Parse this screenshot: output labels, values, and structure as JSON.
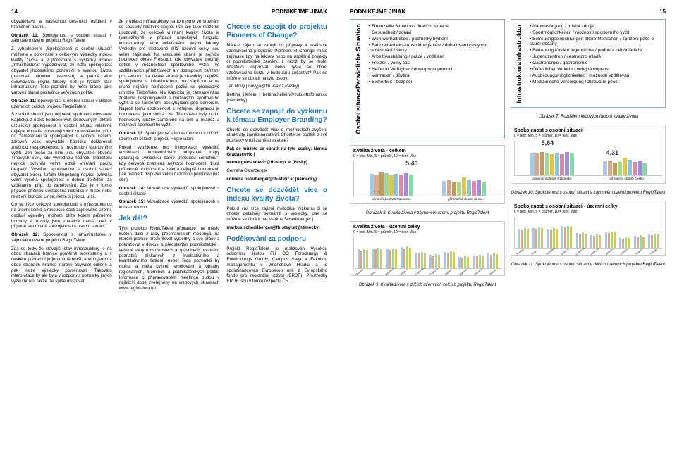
{
  "header": {
    "left_num": "14",
    "title": "PODNIKEJME JINAK",
    "right_num": "15"
  },
  "left": {
    "col1": {
      "p1": "obyvatelstva a následnou destrukcí osídlení v hraničním pásmu.",
      "h1": "Obrázek 10:",
      "p2": "Spokojenost s osobní situací v zájmovém území projektu RegioTalent",
      "p3": "Z vyhodnocení „Spokojenosti s osobní situací\" můžeme v porovnání s celkovými výsledky indexu kvality života a v porovnání s výsledky indexu „Infrastruktura\" vypozorovat, že nižší spokojenost obyvatel jihočeského pohraničí s kvalitou života (nejsme-li národem pesimistů) je patrně více ovlivňována jinými faktory, než je fyzický stav infrastruktury. Toto poznání by mělo bráno jako varovný signál pro tvůrce veřejných politik.",
      "h2": "Obrázek 11:",
      "p4": "Spokojenost s osobní situací v dílčích územních celcích projektu RegioTalent",
      "p5": "S osobní situací jsou nejméně spokojeni obyvatelé Kaplicka, z nízko hodnocených sledovaných faktorů určujících spokojenost s osobní situací relativně nejlépe dopadla doba dojíždění za vzděláním, příp. do zaměstnání a spokojenost s volným časem, zároveň však obyvatelé Kaplicka deklarovali značnou nespokojenost s možnostmi sportovního vyžití. Jen těsně za nimi jsou obyvatelé obvodu Trhových Svin, kde výslednou hodnotu indikátoru nejvíce ovlivnilo velmi nízké vnímání pocitu bezpečí. Vysokou spokojenost s osobní situací obyvatel okresu Urfahr-Umgebung nejvíce ovlivnila velmi vysoká spokojenost s dobou dojíždění za vzděláním, příp. do zaměstnání. Zda je v tomto případě příčinou dostatečná nabídka v místě nebo relativní blízkost Lince, nelze s jistotou určit.",
      "p6": "Co se týče celkové spokojenosti s infrastrukturou na úrovni české a rakouské části zájmového území, oscilují výsledky mohem blíže kolem průměrné hodnoty a rozdíly jsou znatelně menší, než v případě sledované spokojenosti s osobní situací.",
      "h3": "Obrázek 12:",
      "p7": "Spokojenost s infrastrukturou v zájmovém území projektu RegioTalent",
      "p8": "Zdá se tedy, že stávající stav infrastruktury je na obou stranách hranice poměrně srovnatelný a v českém pohraničí je jen mírně horší, anebo jsou na obou stranách hranice nároky obyvatel odlišné a pak nelze výsledky porovnávat. Takováto interpretace by ale byla v rozporu s poznatky jiných výzkumníků, takže lze spíše usuzovat,"
    },
    "col2": {
      "p1": "že v oblasti infrastruktury na tom jsme ve srovnání se sousedy relativně stejně. Pak ale také můžeme usuzovat, že celkové vnímání kvality života je (samozřejmě v případě uspokojivě fungující infrastruktury) více ovlivňováno jinými faktory. Výsledky pro sledované dílčí územní celky jsou velmi zajímavé. Na rakouské straně je nejníže hodnocen okres Freistadt, kde obyvatelé pociťují deficit v možnostech sportovního vyžití, ve vzdělávacích příležitostech a v dostupnosti zařízení pro seniory. Na české straně je drasticky nejnižší spokojenost s infrastrukturou na Kaplicku a na druhé nejhůře hodnocené pozici se překvapivě umístilo Třeboňsko. Na Kaplicku je zaznamenána znatelná nespokojenost s možnostmi sportovního vyžití a se zařízeními poskytujícími péči seniorům. Naproti tomu spokojenost s veřejnou dopravou je hodnocena jako dobrá. Na Třeboňsku byly nízko hodnoceny služby zaměřené na děti a mládež a možnosti sportovního vyžití.",
      "h1": "Obrázek 13:",
      "p2": "Spokojenost s infrastrukturou v dílčích územních celcích projektu RegioTalent",
      "p3": "Pokud využijeme pro interpretaci výsledků vizualizaci prostřednictvím obrysové mapy uplatňující symboliku barev „metodou semaforu\", kdy červená znamená nejhorší hodnocení, žlutá průměrné hodnocení a zelená nejlepší hodnocení, pak máme k dispozici velmi názornou pomůcku (viz obr.)",
      "h2": "Obrázek 14:",
      "p4": "Vizualizace výsledků spokojenosti s osobní situací",
      "h3": "Obrázek 15:",
      "p5": "Vizualizace výsledků spokojenosti s infrastrukturou",
      "st1": "Jak dál?",
      "p6": "Tým projektu RegioTalent připravuje na měsíc květen další z řady přeshraničních meetingů, na kterém plánuje prezentovat výsledky a své práce a pokračovat v diskusi s představiteli podnikatelské i veřejné sféry o možnostech a způsobech uplatnění poznatků získaných z kvalitativního a kvantitativního šetření, neboť řada poznatků by mohla a měla ovlivnit směřování a obsahy regionálních, firemních a podnikatelských politik. Informace o připravovaném meetingu budou v nejbližší době zveřejněny na webových stránkách www.regiotalent.eu."
    },
    "col3": {
      "st1": "Chcete se zapojit do projektu Pioneers of Change?",
      "p1": "Máte-li zájem se zapojit do přípravy a realizace vzdělávacího programu Pioneers of Change, máte zajímavé tipy na lektory nebo na úspěšné projekty či podnikatelské záměry, z nichž by se mohli účastníci inspirovat, nebo byste se chtěli vzdělávacího kurzu v budoucnu zúčastnit? Pak se můžete se obrátit na tyto osoby:",
      "p2": "Jan Nový | novyja@fm.vse.cz (česky)",
      "p3": "Bettina Hellein | bettina.hellein@zukunftsforum.cc (německy)",
      "st2": "Chcete se zapojit do výzkumu k tématu Employer Branding?",
      "p4": "Chcete se dozvědět více o možnostech zvýšení atraktivity zaměstnavatelů? Chcete se podělit o své poznatky v roli zaměstnavatele?",
      "p5": "Pak se můžete se obrátit na tyto osoby: Nerma Gradascevic |",
      "p6": "nerma.gradascevic@fh-steyr.at (česky)",
      "p7": "Cornelia Osterberger |",
      "p8": "cornelia.osterberger@fh-steyr.at (německy)",
      "st3": "Chcete se dozvědět více o Indexu kvality života?",
      "p9": "Pokud vás více zajímá metodika výzkumu či se chcete detailněji seznámit s výsledky, pak se můžete se obrátit na: Markus Schedilberger |",
      "p10": "markus.schedilberger@fh-steyr.at (německy)",
      "st4": "Poděkování za podporu",
      "p11": "Projekt RegioTalent je realizován Vysokou odbornou školou FH OÖ Forschungs & Entwicklungs GmbH, Campus Steyr a Fakultou managementu v Jindřichově Hradci a je spolufinancován Evropskou unií z Evropského fondu pro regionální rozvoj (ERDF). Prostředky ERDF jsou v tomto rozpočtu ČR."
    }
  },
  "boxes": {
    "box1": {
      "vlabel_de": "Persönliche Situation",
      "vlabel_cz": "Osobní situace",
      "items": [
        "Finanzielle Situation / finanční situace",
        "Gesundheit / zdraví",
        "Wohnverhältnisse / podmínky bydlení",
        "Fahrzeit Arbeits-/Ausbildungsplatz / doba trvání cesty do zaměstnání / školy",
        "Arbeit/Ausbildung / práce / vzdělání",
        "Freizeit / volný čas",
        "Helfer in Verfügbar / dostupnost pomoci",
        "Vertrauen / důvěra",
        "Sicherheit / bezpečí"
      ]
    },
    "box2": {
      "vlabel_de": "Infrastruktur",
      "vlabel_cz": "Infrastruktura",
      "items": [
        "Nahversorgung / místní zdroje",
        "Sportmöglichkeiten / možnosti sportovního vyžití",
        "Betreuungseinrichtungen ältere Menschen / zařízení péče o starší občany",
        "Betreuung Kinder/Jugendliche / podpora dětí/mládeže",
        "Jugendzentren / centra pro mladé",
        "Gastronomie / gastronomie",
        "Öffentlicher Verkehr / veřejná doprava",
        "Ausbildungsmöglichkeiten / možnosti vzdělávání",
        "Medizinische Versorgung / zdravotní péče"
      ]
    },
    "caption7": "Obrázek 7: Rozdělení klíčových faktorů kvality života"
  },
  "charts": {
    "c8": {
      "title": "Kvalita života - celkem",
      "sub": "0 = teor. Min, 5 = průměr, 10 = teor. Max",
      "value": "5,43",
      "labels": [
        "přinaniční oblasti\nRakousko",
        "přihraniční oblasti\nČesko"
      ],
      "bars": [
        [
          6.2,
          6.0,
          6.5,
          6.3,
          5.8,
          6.1,
          5.9,
          6.4,
          6.0
        ],
        [
          4.2,
          4.5,
          3.8,
          4.0,
          5.2,
          4.6,
          4.1,
          4.3,
          3.9
        ]
      ],
      "colors": [
        "#a8c8e8",
        "#d8a888",
        "#c89858",
        "#a8d890",
        "#d8c858",
        "#88c8d8",
        "#d888a8",
        "#a888d8",
        "#88d8a8"
      ],
      "caption": "Obrázek 8: Kvalita života v zájmovém území projektu RegioTalent"
    },
    "c10": {
      "title": "Spokojenost s osobní situací",
      "sub": "0 = teor. Min, 5 = průměr, 10 = teor. Max",
      "value": "5,64",
      "value2": "4,31",
      "labels": [
        "přinaniční oblasti\nRakousko",
        "přihraniční oblasti\nČesko"
      ],
      "bars": [
        [
          6.4,
          6.2,
          6.7,
          6.5,
          6.0,
          6.3,
          6.1,
          6.6,
          6.2
        ],
        [
          4.0,
          4.3,
          3.6,
          3.8,
          5.0,
          4.4,
          3.9,
          4.1,
          3.7
        ]
      ],
      "colors": [
        "#a8c8e8",
        "#d8a888",
        "#c89858",
        "#a8d890",
        "#d8c858",
        "#88c8d8",
        "#d888a8",
        "#a888d8",
        "#88d8a8"
      ],
      "caption": "Obrázek 10: Spokojenost s osobní situací v zájmovém území projektu RegioTalent"
    },
    "c9": {
      "title": "Kvalita života - územní celky",
      "sub": "0 = teor. Min, 5 = průměr, 10 = teor. Max",
      "groups": [
        "Freistadt",
        "Perg",
        "Rohrbach",
        "Urfahr-Umgebung",
        "České Budějovice",
        "Český Krumlov",
        "Jindřichův Hradec",
        "Kaplicko",
        "Trhové Sviny",
        "Třeboň"
      ],
      "values": [
        [
          5.8,
          5.5,
          6.0,
          5.7
        ],
        [
          6.1,
          5.8,
          6.3,
          6.0
        ],
        [
          5.9,
          5.6,
          6.1,
          5.8
        ],
        [
          6.5,
          6.2,
          6.7,
          6.4
        ],
        [
          4.8,
          4.5,
          5.0,
          4.7
        ],
        [
          4.2,
          3.9,
          4.4,
          4.1
        ],
        [
          5.1,
          4.8,
          5.3,
          5.0
        ],
        [
          3.5,
          3.2,
          3.7,
          3.4
        ],
        [
          4.0,
          3.7,
          4.2,
          3.9
        ],
        [
          4.5,
          4.2,
          4.7,
          4.4
        ]
      ],
      "colors": [
        "#a8c8e8",
        "#d8a888",
        "#a8d890",
        "#d8c858"
      ],
      "caption": "Obrázek 9: Kvalita života v dílčích územních celcích projektu RegioTalent"
    },
    "c11": {
      "title": "Spokojenost s osobní situací - územní celky",
      "sub": "0 = teor. Min, 5 = průměr, 10 = teor. Max",
      "groups": [
        "Freistadt",
        "Perg",
        "Rohrbach",
        "Urfahr-Umgebung",
        "České Budějovice",
        "Český Krumlov",
        "Jindřichův Hradec",
        "Kaplicko",
        "Trhové Sviny",
        "Třeboň"
      ],
      "values": [
        [
          6.0,
          5.7,
          6.2,
          5.9
        ],
        [
          6.3,
          6.0,
          6.5,
          6.2
        ],
        [
          6.1,
          5.8,
          6.3,
          6.0
        ],
        [
          6.8,
          6.5,
          7.0,
          6.7
        ],
        [
          4.6,
          4.3,
          4.8,
          4.5
        ],
        [
          4.0,
          3.7,
          4.2,
          3.9
        ],
        [
          4.9,
          4.6,
          5.1,
          4.8
        ],
        [
          3.2,
          2.9,
          3.4,
          3.1
        ],
        [
          3.7,
          3.4,
          3.9,
          3.6
        ],
        [
          4.3,
          4.0,
          4.5,
          4.2
        ]
      ],
      "colors": [
        "#a8c8e8",
        "#d8a888",
        "#a8d890",
        "#d8c858"
      ],
      "caption": "Obrázek 11: Spokojenost s osobní situací v dílčích územních projektu RegioTalent"
    }
  }
}
